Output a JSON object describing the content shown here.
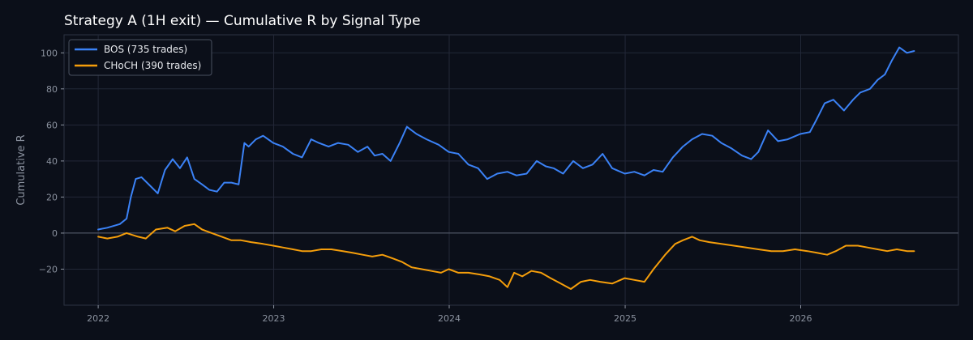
{
  "chart_data": {
    "type": "line",
    "title": "Strategy A (1H exit) — Cumulative R by Signal Type",
    "xlabel": "",
    "ylabel": "Cumulative R",
    "xlim": [
      "2021-10-22",
      "2026-11-25"
    ],
    "ylim": [
      -40,
      110
    ],
    "x_ticks": [
      "2022",
      "2023",
      "2024",
      "2025",
      "2026"
    ],
    "y_ticks": [
      -20,
      0,
      20,
      40,
      60,
      80,
      100
    ],
    "y_tick_labels": [
      "−20",
      "0",
      "20",
      "40",
      "60",
      "80",
      "100"
    ],
    "grid": true,
    "zero_line": true,
    "legend_position": "top-left",
    "series": [
      {
        "name": "BOS (735 trades)",
        "color": "#3b82f6",
        "x": [
          "2022-01-01",
          "2022-01-20",
          "2022-02-15",
          "2022-03-01",
          "2022-03-10",
          "2022-03-20",
          "2022-04-01",
          "2022-04-20",
          "2022-05-05",
          "2022-05-20",
          "2022-06-05",
          "2022-06-20",
          "2022-07-05",
          "2022-07-20",
          "2022-08-05",
          "2022-08-20",
          "2022-09-05",
          "2022-09-20",
          "2022-10-05",
          "2022-10-20",
          "2022-11-01",
          "2022-11-10",
          "2022-11-25",
          "2022-12-10",
          "2022-12-31",
          "2023-01-20",
          "2023-02-10",
          "2023-03-01",
          "2023-03-20",
          "2023-04-05",
          "2023-04-25",
          "2023-05-15",
          "2023-06-05",
          "2023-06-25",
          "2023-07-15",
          "2023-07-30",
          "2023-08-15",
          "2023-09-01",
          "2023-09-20",
          "2023-10-05",
          "2023-10-25",
          "2023-11-15",
          "2023-12-10",
          "2023-12-31",
          "2024-01-20",
          "2024-02-10",
          "2024-03-01",
          "2024-03-20",
          "2024-04-10",
          "2024-05-01",
          "2024-05-20",
          "2024-06-10",
          "2024-07-01",
          "2024-07-20",
          "2024-08-05",
          "2024-08-25",
          "2024-09-15",
          "2024-10-05",
          "2024-10-25",
          "2024-11-15",
          "2024-12-05",
          "2024-12-31",
          "2025-01-20",
          "2025-02-10",
          "2025-03-01",
          "2025-03-20",
          "2025-04-10",
          "2025-05-01",
          "2025-05-20",
          "2025-06-10",
          "2025-07-01",
          "2025-07-20",
          "2025-08-10",
          "2025-09-01",
          "2025-09-20",
          "2025-10-05",
          "2025-10-25",
          "2025-11-15",
          "2025-12-05",
          "2025-12-31",
          "2026-01-20",
          "2026-02-01",
          "2026-02-20",
          "2026-03-10",
          "2026-04-01",
          "2026-04-20",
          "2026-05-05",
          "2026-05-25",
          "2026-06-10",
          "2026-06-25",
          "2026-07-10",
          "2026-07-25",
          "2026-08-10",
          "2026-08-25"
        ],
        "values": [
          2,
          3,
          5,
          8,
          20,
          30,
          31,
          26,
          22,
          35,
          41,
          36,
          42,
          30,
          27,
          24,
          23,
          28,
          28,
          27,
          50,
          48,
          52,
          54,
          50,
          48,
          44,
          42,
          52,
          50,
          48,
          50,
          49,
          45,
          48,
          43,
          44,
          40,
          50,
          59,
          55,
          52,
          49,
          45,
          44,
          38,
          36,
          30,
          33,
          34,
          32,
          33,
          40,
          37,
          36,
          33,
          40,
          36,
          38,
          44,
          36,
          33,
          34,
          32,
          35,
          34,
          42,
          48,
          52,
          55,
          54,
          50,
          47,
          43,
          41,
          45,
          57,
          51,
          52,
          55,
          56,
          62,
          72,
          74,
          68,
          74,
          78,
          80,
          85,
          88,
          96,
          103,
          100,
          101
        ]
      },
      {
        "name": "CHoCH (390 trades)",
        "color": "#f59e0b",
        "x": [
          "2022-01-01",
          "2022-01-20",
          "2022-02-10",
          "2022-03-01",
          "2022-03-25",
          "2022-04-10",
          "2022-05-01",
          "2022-05-25",
          "2022-06-10",
          "2022-06-30",
          "2022-07-20",
          "2022-08-05",
          "2022-08-25",
          "2022-09-15",
          "2022-10-05",
          "2022-10-25",
          "2022-11-15",
          "2022-12-10",
          "2022-12-31",
          "2023-01-20",
          "2023-02-10",
          "2023-03-01",
          "2023-03-20",
          "2023-04-10",
          "2023-05-01",
          "2023-05-25",
          "2023-06-15",
          "2023-07-05",
          "2023-07-25",
          "2023-08-15",
          "2023-09-05",
          "2023-09-25",
          "2023-10-15",
          "2023-11-05",
          "2023-11-25",
          "2023-12-15",
          "2023-12-31",
          "2024-01-20",
          "2024-02-10",
          "2024-03-05",
          "2024-03-25",
          "2024-04-15",
          "2024-05-01",
          "2024-05-15",
          "2024-06-01",
          "2024-06-20",
          "2024-07-10",
          "2024-07-30",
          "2024-08-20",
          "2024-09-10",
          "2024-10-01",
          "2024-10-20",
          "2024-11-10",
          "2024-12-05",
          "2024-12-31",
          "2025-01-20",
          "2025-02-10",
          "2025-03-01",
          "2025-03-25",
          "2025-04-15",
          "2025-05-01",
          "2025-05-20",
          "2025-06-05",
          "2025-06-25",
          "2025-07-20",
          "2025-08-15",
          "2025-09-10",
          "2025-10-05",
          "2025-11-01",
          "2025-11-25",
          "2025-12-20",
          "2026-01-15",
          "2026-02-05",
          "2026-02-25",
          "2026-03-15",
          "2026-04-05",
          "2026-04-30",
          "2026-05-20",
          "2026-06-10",
          "2026-06-30",
          "2026-07-20",
          "2026-08-10",
          "2026-08-25"
        ],
        "values": [
          -2,
          -3,
          -2,
          0,
          -2,
          -3,
          2,
          3,
          1,
          4,
          5,
          2,
          0,
          -2,
          -4,
          -4,
          -5,
          -6,
          -7,
          -8,
          -9,
          -10,
          -10,
          -9,
          -9,
          -10,
          -11,
          -12,
          -13,
          -12,
          -14,
          -16,
          -19,
          -20,
          -21,
          -22,
          -20,
          -22,
          -22,
          -23,
          -24,
          -26,
          -30,
          -22,
          -24,
          -21,
          -22,
          -25,
          -28,
          -31,
          -27,
          -26,
          -27,
          -28,
          -25,
          -26,
          -27,
          -20,
          -12,
          -6,
          -4,
          -2,
          -4,
          -5,
          -6,
          -7,
          -8,
          -9,
          -10,
          -10,
          -9,
          -10,
          -11,
          -12,
          -10,
          -7,
          -7,
          -8,
          -9,
          -10,
          -9,
          -10,
          -10
        ]
      }
    ]
  }
}
